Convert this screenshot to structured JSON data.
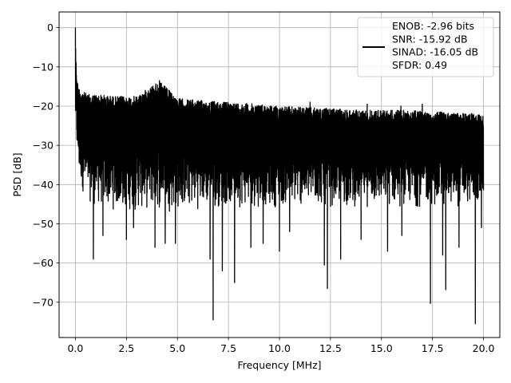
{
  "chart_data": {
    "type": "line",
    "title": "",
    "xlabel": "Frequency [MHz]",
    "ylabel": "PSD [dB]",
    "xlim": [
      -0.8,
      20.8
    ],
    "ylim": [
      -79,
      4
    ],
    "x_ticks": [
      0.0,
      2.5,
      5.0,
      7.5,
      10.0,
      12.5,
      15.0,
      17.5,
      20.0
    ],
    "x_tick_labels": [
      "0.0",
      "2.5",
      "5.0",
      "7.5",
      "10.0",
      "12.5",
      "15.0",
      "17.5",
      "20.0"
    ],
    "y_ticks": [
      0,
      -10,
      -20,
      -30,
      -40,
      -50,
      -60,
      -70
    ],
    "y_tick_labels": [
      "0",
      "−10",
      "−20",
      "−30",
      "−40",
      "−50",
      "−60",
      "−70"
    ],
    "grid": true,
    "legend_position": "top-right",
    "series_color": "#000000",
    "legend_lines": [
      "ENOB: -2.96 bits",
      "SNR: -15.92 dB",
      "SINAD: -16.05 dB",
      "SFDR: 0.49"
    ],
    "series": [
      {
        "x_range": [
          0.0,
          20.0
        ],
        "upper_envelope": [
          [
            0.0,
            0.0
          ],
          [
            0.03,
            -8
          ],
          [
            0.08,
            -13
          ],
          [
            0.15,
            -15
          ],
          [
            0.3,
            -16
          ],
          [
            0.6,
            -17
          ],
          [
            1.0,
            -17
          ],
          [
            2.0,
            -17.5
          ],
          [
            3.0,
            -17.5
          ],
          [
            4.1,
            -13.5
          ],
          [
            5.0,
            -18
          ],
          [
            6.0,
            -18.5
          ],
          [
            7.5,
            -19
          ],
          [
            9.0,
            -19.5
          ],
          [
            10.0,
            -20
          ],
          [
            12.0,
            -20.5
          ],
          [
            14.0,
            -21
          ],
          [
            16.0,
            -21
          ],
          [
            18.0,
            -21.5
          ],
          [
            20.0,
            -22
          ]
        ],
        "lower_envelope": [
          [
            0.0,
            -28
          ],
          [
            0.2,
            -40
          ],
          [
            0.5,
            -44
          ],
          [
            1.0,
            -46
          ],
          [
            2.0,
            -47
          ],
          [
            3.0,
            -47
          ],
          [
            5.0,
            -47
          ],
          [
            7.0,
            -46
          ],
          [
            9.0,
            -46
          ],
          [
            11.0,
            -46
          ],
          [
            13.0,
            -46
          ],
          [
            15.0,
            -46
          ],
          [
            17.0,
            -46
          ],
          [
            19.0,
            -46
          ],
          [
            20.0,
            -45
          ]
        ],
        "dips": [
          [
            0.88,
            -59
          ],
          [
            1.35,
            -53
          ],
          [
            2.5,
            -54
          ],
          [
            2.85,
            -51
          ],
          [
            3.9,
            -56
          ],
          [
            4.4,
            -55
          ],
          [
            4.9,
            -55
          ],
          [
            6.6,
            -59
          ],
          [
            6.75,
            -74.5
          ],
          [
            7.2,
            -62
          ],
          [
            7.8,
            -65
          ],
          [
            8.6,
            -56
          ],
          [
            9.2,
            -55
          ],
          [
            10.0,
            -57
          ],
          [
            10.5,
            -52
          ],
          [
            11.5,
            -55
          ],
          [
            12.2,
            -60.5
          ],
          [
            12.35,
            -66.5
          ],
          [
            13.0,
            -59
          ],
          [
            14.0,
            -54
          ],
          [
            15.3,
            -57
          ],
          [
            16.0,
            -53
          ],
          [
            17.4,
            -70.3
          ],
          [
            18.0,
            -58
          ],
          [
            18.15,
            -66.8
          ],
          [
            18.8,
            -56
          ],
          [
            19.6,
            -75.5
          ],
          [
            19.9,
            -51
          ]
        ],
        "spikes": [
          [
            4.12,
            -13.5
          ],
          [
            11.5,
            -19
          ],
          [
            14.3,
            -19.5
          ],
          [
            15.95,
            -20
          ],
          [
            17.0,
            -19.5
          ]
        ]
      }
    ]
  }
}
